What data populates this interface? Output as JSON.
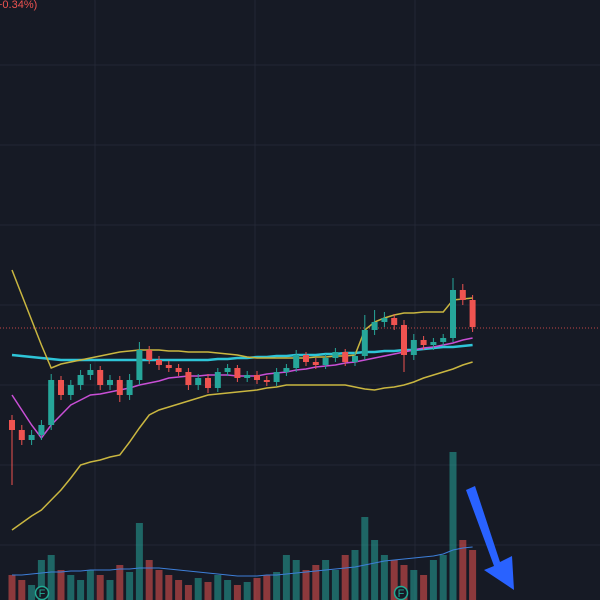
{
  "chart_data": {
    "type": "candlestick",
    "header_text": "+0.34%)",
    "ylim": [
      0,
      600
    ],
    "y2lim": [
      0,
      600
    ],
    "up_color": "#26a69a",
    "down_color": "#ef5350",
    "price_line": 272,
    "price_line_color": "#ef5350",
    "event_markers": [
      "F",
      "F"
    ],
    "event_marker_color": "#22ab94",
    "open": [
      180,
      170,
      160,
      165,
      175,
      220,
      205,
      215,
      225,
      230,
      215,
      220,
      205,
      220,
      250,
      240,
      235,
      232,
      228,
      215,
      222,
      212,
      228,
      232,
      222,
      225,
      220,
      218,
      228,
      232,
      245,
      238,
      235,
      242,
      248,
      238,
      244,
      270,
      278,
      282,
      275,
      245,
      260,
      255,
      258,
      262,
      310,
      300
    ],
    "high": [
      185,
      175,
      170,
      180,
      226,
      224,
      220,
      230,
      236,
      234,
      225,
      224,
      226,
      258,
      254,
      244,
      239,
      236,
      232,
      226,
      226,
      232,
      236,
      235,
      229,
      229,
      224,
      232,
      236,
      250,
      248,
      242,
      246,
      252,
      251,
      248,
      285,
      290,
      288,
      286,
      280,
      266,
      264,
      262,
      266,
      322,
      316,
      305
    ],
    "low": [
      115,
      155,
      155,
      160,
      170,
      200,
      200,
      210,
      220,
      210,
      210,
      198,
      200,
      215,
      236,
      230,
      228,
      224,
      210,
      210,
      207,
      208,
      224,
      218,
      218,
      216,
      214,
      214,
      224,
      228,
      234,
      231,
      231,
      238,
      234,
      234,
      240,
      265,
      273,
      270,
      228,
      240,
      250,
      250,
      254,
      258,
      295,
      268
    ],
    "close": [
      170,
      160,
      165,
      175,
      220,
      205,
      215,
      225,
      230,
      215,
      220,
      205,
      220,
      250,
      240,
      235,
      232,
      228,
      215,
      222,
      212,
      228,
      232,
      222,
      225,
      220,
      218,
      228,
      232,
      245,
      238,
      235,
      242,
      248,
      238,
      244,
      270,
      278,
      282,
      275,
      245,
      260,
      255,
      258,
      262,
      310,
      300,
      273
    ],
    "volume": [
      25,
      20,
      15,
      40,
      45,
      30,
      25,
      20,
      30,
      25,
      20,
      35,
      28,
      77,
      40,
      30,
      25,
      20,
      15,
      22,
      18,
      25,
      20,
      15,
      18,
      22,
      25,
      28,
      45,
      40,
      30,
      35,
      40,
      30,
      45,
      50,
      83,
      60,
      45,
      40,
      35,
      30,
      25,
      40,
      45,
      148,
      60,
      50
    ],
    "series": [
      {
        "color": "#2ec5d8",
        "values": [
          245,
          244,
          243,
          242,
          241,
          240,
          240,
          240,
          240,
          240,
          240,
          240,
          240,
          240,
          240,
          240,
          240,
          240,
          240,
          240,
          240,
          241,
          241,
          242,
          242,
          243,
          243,
          244,
          244,
          245,
          245,
          245,
          246,
          246,
          247,
          247,
          248,
          248,
          249,
          249,
          250,
          250,
          251,
          252,
          253,
          253,
          254,
          255
        ]
      },
      {
        "color": "#c94fd6",
        "values": [
          205,
          190,
          175,
          162,
          175,
          185,
          195,
          200,
          205,
          206,
          208,
          210,
          212,
          215,
          217,
          219,
          222,
          223,
          224,
          224,
          225,
          225,
          225,
          224,
          224,
          224,
          226,
          227,
          228,
          230,
          231,
          233,
          234,
          235,
          237,
          238,
          240,
          242,
          244,
          246,
          248,
          250,
          252,
          253,
          255,
          257,
          260,
          262
        ]
      },
      {
        "color": "#c9b640",
        "values": [
          330,
          305,
          280,
          255,
          232,
          236,
          238,
          240,
          242,
          244,
          246,
          248,
          249,
          250,
          250,
          250,
          249,
          249,
          248,
          248,
          248,
          247,
          246,
          245,
          243,
          242,
          242,
          242,
          242,
          242,
          242,
          243,
          243,
          244,
          244,
          245,
          270,
          278,
          282,
          285,
          287,
          287,
          288,
          288,
          288,
          300,
          301,
          302
        ]
      },
      {
        "color": "#c9b640",
        "values": [
          70,
          77,
          84,
          90,
          100,
          110,
          122,
          135,
          138,
          140,
          143,
          145,
          158,
          172,
          185,
          190,
          193,
          196,
          199,
          202,
          205,
          206,
          207,
          208,
          209,
          210,
          212,
          213,
          215,
          215,
          215,
          215,
          215,
          215,
          215,
          213,
          211,
          210,
          212,
          213,
          215,
          218,
          222,
          225,
          228,
          231,
          235,
          238
        ]
      },
      {
        "color": "#3d7fd9",
        "axis": "y2",
        "values": [
          25,
          25,
          26,
          27,
          28,
          28,
          29,
          29,
          30,
          30,
          30,
          31,
          31,
          32,
          32,
          32,
          31,
          30,
          29,
          28,
          27,
          26,
          25,
          24,
          24,
          24,
          25,
          25,
          26,
          27,
          28,
          29,
          30,
          31,
          32,
          33,
          35,
          37,
          39,
          40,
          41,
          42,
          43,
          44,
          46,
          50,
          52,
          53
        ]
      }
    ]
  }
}
